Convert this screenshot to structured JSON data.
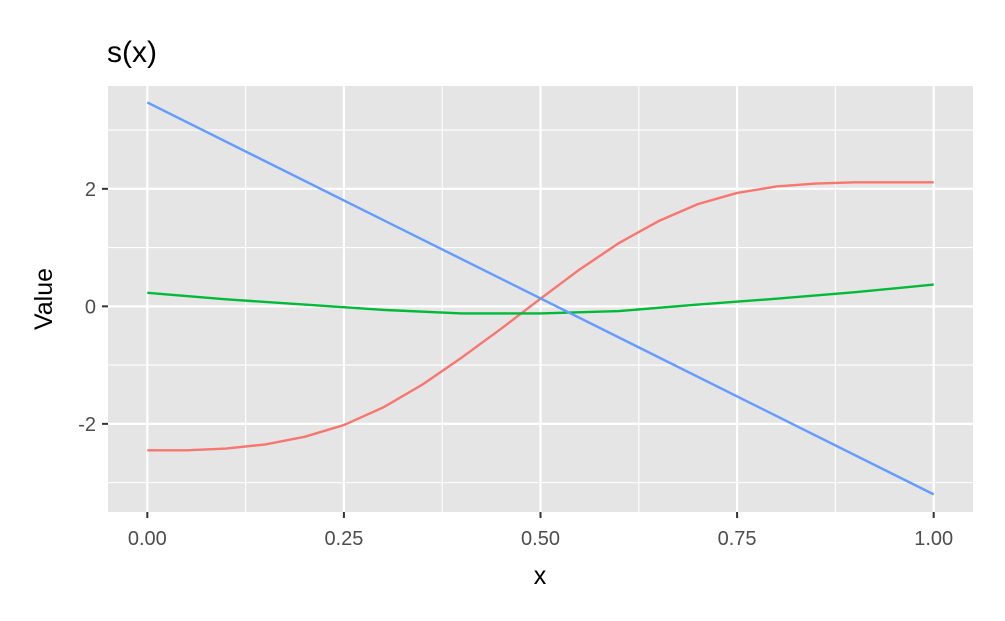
{
  "chart_data": {
    "type": "line",
    "title": "s(x)",
    "xlabel": "x",
    "ylabel": "Value",
    "xlim": [
      -0.05,
      1.05
    ],
    "ylim": [
      -3.5,
      3.75
    ],
    "x_ticks": [
      0.0,
      0.25,
      0.5,
      0.75,
      1.0
    ],
    "x_tick_labels": [
      "0.00",
      "0.25",
      "0.50",
      "0.75",
      "1.00"
    ],
    "x_minor_ticks": [
      0.125,
      0.375,
      0.625,
      0.875
    ],
    "y_ticks": [
      -2,
      0,
      2
    ],
    "y_tick_labels": [
      "-2",
      "0",
      "2"
    ],
    "y_minor_ticks": [
      -3,
      -1,
      1,
      3
    ],
    "grid": true,
    "legend": "none",
    "colors": {
      "panel_background": "#e5e5e5",
      "grid": "#ffffff",
      "tick_text": "#4d4d4d",
      "tick_mark": "#333333"
    },
    "series": [
      {
        "color": "#f8766d",
        "x": [
          0.0,
          0.05,
          0.1,
          0.15,
          0.2,
          0.25,
          0.3,
          0.35,
          0.4,
          0.45,
          0.5,
          0.55,
          0.6,
          0.65,
          0.7,
          0.75,
          0.8,
          0.85,
          0.9,
          0.95,
          1.0
        ],
        "y": [
          -2.45,
          -2.45,
          -2.42,
          -2.35,
          -2.22,
          -2.02,
          -1.72,
          -1.33,
          -0.87,
          -0.38,
          0.13,
          0.63,
          1.08,
          1.45,
          1.74,
          1.93,
          2.04,
          2.09,
          2.11,
          2.11,
          2.11
        ]
      },
      {
        "color": "#00ba38",
        "x": [
          0.0,
          0.1,
          0.2,
          0.3,
          0.4,
          0.5,
          0.6,
          0.7,
          0.8,
          0.9,
          1.0
        ],
        "y": [
          0.23,
          0.12,
          0.03,
          -0.06,
          -0.12,
          -0.12,
          -0.08,
          0.03,
          0.13,
          0.24,
          0.37
        ]
      },
      {
        "color": "#619cff",
        "x": [
          0.0,
          1.0
        ],
        "y": [
          3.47,
          -3.2
        ]
      }
    ]
  }
}
